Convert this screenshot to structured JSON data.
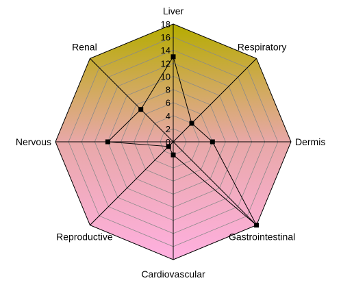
{
  "chart_data": {
    "type": "radar",
    "categories": [
      "Liver",
      "Respiratory",
      "Dermis",
      "Gastrointestinal",
      "Cardiovascular",
      "Reproductive",
      "Nervous",
      "Renal"
    ],
    "series": [
      {
        "values": [
          13,
          4,
          6,
          18,
          2,
          1,
          10,
          7
        ]
      }
    ],
    "rlim": [
      0,
      18
    ],
    "ticks": [
      0,
      2,
      4,
      6,
      8,
      10,
      12,
      14,
      16,
      18
    ],
    "tick_labels": [
      "0",
      "2",
      "4",
      "6",
      "8",
      "10",
      "12",
      "14",
      "16",
      "18"
    ],
    "grid": true,
    "fill_gradient": {
      "top": "#b5ac00",
      "middle": "#e8a8a8",
      "bottom": "#ffb0e0"
    },
    "grid_color": "#8a8a8a",
    "spoke_color": "#000000",
    "series_color": "#000000"
  }
}
